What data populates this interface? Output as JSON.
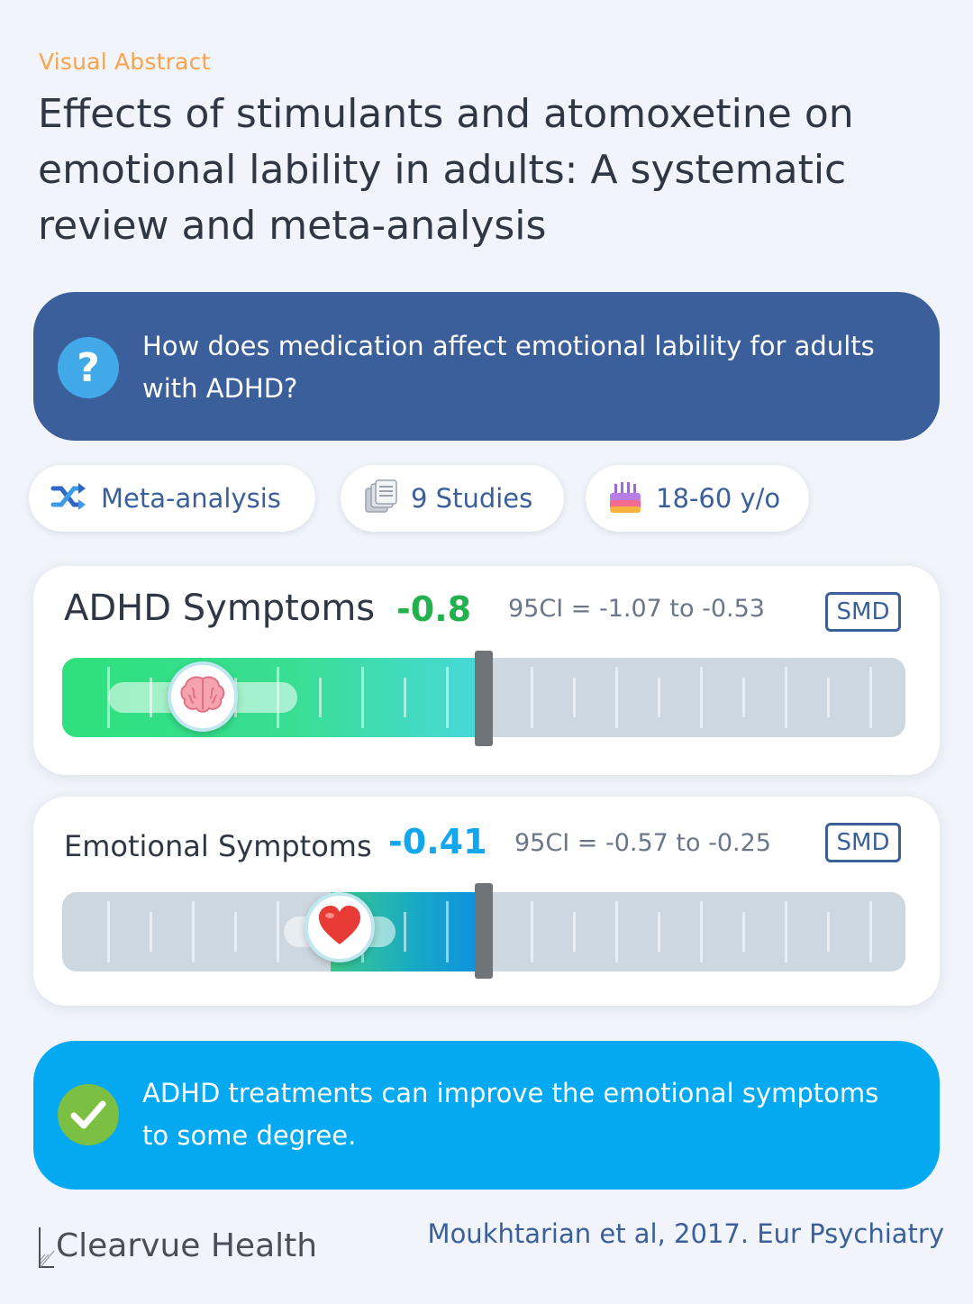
{
  "header": {
    "label": "Visual Abstract",
    "title": "Effects of stimulants and atomoxetine on emotional lability in adults: A systematic review and meta-analysis"
  },
  "question": {
    "icon": "question-icon",
    "text": "How does medication affect emotional lability for adults with ADHD?"
  },
  "pills": [
    {
      "icon": "shuffle-icon",
      "label": "Meta-analysis"
    },
    {
      "icon": "documents-icon",
      "label": "9 Studies"
    },
    {
      "icon": "birthday-cake-icon",
      "label": "18-60 y/o"
    }
  ],
  "metrics": [
    {
      "title": "ADHD Symptoms",
      "value": "-0.8",
      "ci": "95CI = -1.07 to -0.53",
      "badge": "SMD",
      "icon": "brain-icon",
      "effect": -0.8,
      "ci_low": -1.07,
      "ci_high": -0.53,
      "value_color": "#23b150"
    },
    {
      "title": "Emotional Symptoms",
      "value": "-0.41",
      "ci": "95CI = -0.57 to -0.25",
      "badge": "SMD",
      "icon": "heart-icon",
      "effect": -0.41,
      "ci_low": -0.57,
      "ci_high": -0.25,
      "value_color": "#12a6ec"
    }
  ],
  "conclusion": {
    "icon": "checkmark-icon",
    "text": "ADHD treatments can improve the emotional symptoms to some degree."
  },
  "footer": {
    "brand": "Clearvue Health",
    "citation": "Moukhtarian et al, 2017. Eur Psychiatry"
  },
  "colors": {
    "accent_orange": "#f7a44c",
    "navy": "#3a5f9a",
    "sky": "#04a9f2",
    "green": "#23b150",
    "check_green": "#7cc043"
  }
}
